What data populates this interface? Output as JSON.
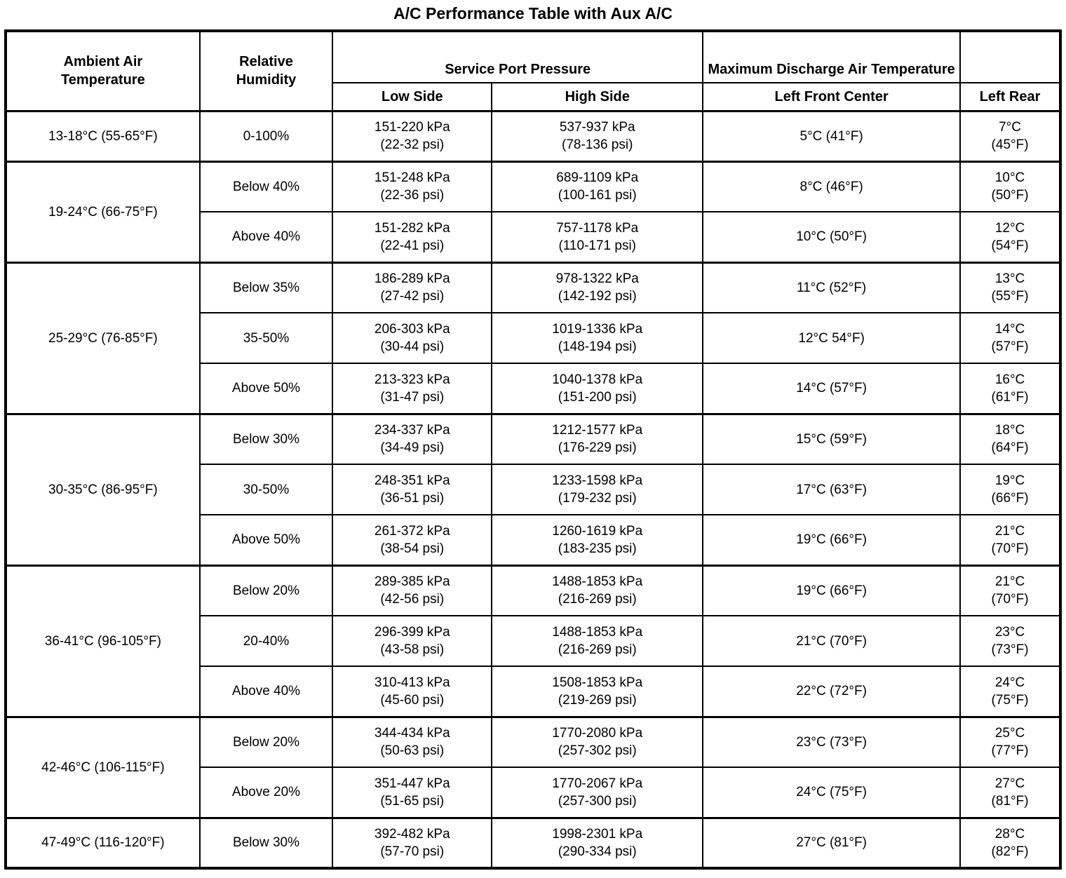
{
  "title": "A/C Performance Table with Aux A/C",
  "colors": {
    "text": "#000000",
    "background": "#ffffff",
    "border": "#000000"
  },
  "table": {
    "header": {
      "ambient": "Ambient Air Temperature",
      "humidity": "Relative Humidity",
      "service_port": "Service Port Pressure",
      "max_discharge": "Maximum Discharge Air Temperature",
      "low_side": "Low Side",
      "high_side": "High Side",
      "left_front_center": "Left Front Center",
      "left_rear": "Left Rear"
    },
    "groups": [
      {
        "ambient": "13-18°C (55-65°F)",
        "rows": [
          {
            "humidity": "0-100%",
            "low_kpa": "151-220 kPa",
            "low_psi": "(22-32 psi)",
            "high_kpa": "537-937 kPa",
            "high_psi": "(78-136 psi)",
            "front": "5°C (41°F)",
            "rear_c": "7°C",
            "rear_f": "(45°F)"
          }
        ]
      },
      {
        "ambient": "19-24°C (66-75°F)",
        "rows": [
          {
            "humidity": "Below 40%",
            "low_kpa": "151-248 kPa",
            "low_psi": "(22-36 psi)",
            "high_kpa": "689-1109 kPa",
            "high_psi": "(100-161 psi)",
            "front": "8°C (46°F)",
            "rear_c": "10°C",
            "rear_f": "(50°F)"
          },
          {
            "humidity": "Above 40%",
            "low_kpa": "151-282 kPa",
            "low_psi": "(22-41 psi)",
            "high_kpa": "757-1178 kPa",
            "high_psi": "(110-171 psi)",
            "front": "10°C (50°F)",
            "rear_c": "12°C",
            "rear_f": "(54°F)"
          }
        ]
      },
      {
        "ambient": "25-29°C (76-85°F)",
        "rows": [
          {
            "humidity": "Below 35%",
            "low_kpa": "186-289 kPa",
            "low_psi": "(27-42 psi)",
            "high_kpa": "978-1322 kPa",
            "high_psi": "(142-192 psi)",
            "front": "11°C (52°F)",
            "rear_c": "13°C",
            "rear_f": "(55°F)"
          },
          {
            "humidity": "35-50%",
            "low_kpa": "206-303 kPa",
            "low_psi": "(30-44 psi)",
            "high_kpa": "1019-1336 kPa",
            "high_psi": "(148-194 psi)",
            "front": "12°C 54°F)",
            "rear_c": "14°C",
            "rear_f": "(57°F)"
          },
          {
            "humidity": "Above 50%",
            "low_kpa": "213-323 kPa",
            "low_psi": "(31-47 psi)",
            "high_kpa": "1040-1378 kPa",
            "high_psi": "(151-200 psi)",
            "front": "14°C (57°F)",
            "rear_c": "16°C",
            "rear_f": "(61°F)"
          }
        ]
      },
      {
        "ambient": "30-35°C (86-95°F)",
        "rows": [
          {
            "humidity": "Below 30%",
            "low_kpa": "234-337 kPa",
            "low_psi": "(34-49 psi)",
            "high_kpa": "1212-1577 kPa",
            "high_psi": "(176-229 psi)",
            "front": "15°C (59°F)",
            "rear_c": "18°C",
            "rear_f": "(64°F)"
          },
          {
            "humidity": "30-50%",
            "low_kpa": "248-351 kPa",
            "low_psi": "(36-51 psi)",
            "high_kpa": "1233-1598 kPa",
            "high_psi": "(179-232 psi)",
            "front": "17°C (63°F)",
            "rear_c": "19°C",
            "rear_f": "(66°F)"
          },
          {
            "humidity": "Above 50%",
            "low_kpa": "261-372 kPa",
            "low_psi": "(38-54 psi)",
            "high_kpa": "1260-1619 kPa",
            "high_psi": "(183-235 psi)",
            "front": "19°C (66°F)",
            "rear_c": "21°C",
            "rear_f": "(70°F)"
          }
        ]
      },
      {
        "ambient": "36-41°C (96-105°F)",
        "rows": [
          {
            "humidity": "Below 20%",
            "low_kpa": "289-385 kPa",
            "low_psi": "(42-56 psi)",
            "high_kpa": "1488-1853 kPa",
            "high_psi": "(216-269 psi)",
            "front": "19°C (66°F)",
            "rear_c": "21°C",
            "rear_f": "(70°F)"
          },
          {
            "humidity": "20-40%",
            "low_kpa": "296-399 kPa",
            "low_psi": "(43-58 psi)",
            "high_kpa": "1488-1853 kPa",
            "high_psi": "(216-269 psi)",
            "front": "21°C (70°F)",
            "rear_c": "23°C",
            "rear_f": "(73°F)"
          },
          {
            "humidity": "Above 40%",
            "low_kpa": "310-413 kPa",
            "low_psi": "(45-60 psi)",
            "high_kpa": "1508-1853 kPa",
            "high_psi": "(219-269 psi)",
            "front": "22°C (72°F)",
            "rear_c": "24°C",
            "rear_f": "(75°F)"
          }
        ]
      },
      {
        "ambient": "42-46°C (106-115°F)",
        "rows": [
          {
            "humidity": "Below 20%",
            "low_kpa": "344-434 kPa",
            "low_psi": "(50-63 psi)",
            "high_kpa": "1770-2080 kPa",
            "high_psi": "(257-302 psi)",
            "front": "23°C (73°F)",
            "rear_c": "25°C",
            "rear_f": "(77°F)"
          },
          {
            "humidity": "Above 20%",
            "low_kpa": "351-447 kPa",
            "low_psi": "(51-65 psi)",
            "high_kpa": "1770-2067 kPa",
            "high_psi": "(257-300 psi)",
            "front": "24°C (75°F)",
            "rear_c": "27°C",
            "rear_f": "(81°F)"
          }
        ]
      },
      {
        "ambient": "47-49°C (116-120°F)",
        "rows": [
          {
            "humidity": "Below 30%",
            "low_kpa": "392-482 kPa",
            "low_psi": "(57-70 psi)",
            "high_kpa": "1998-2301 kPa",
            "high_psi": "(290-334 psi)",
            "front": "27°C (81°F)",
            "rear_c": "28°C",
            "rear_f": "(82°F)"
          }
        ]
      }
    ]
  }
}
